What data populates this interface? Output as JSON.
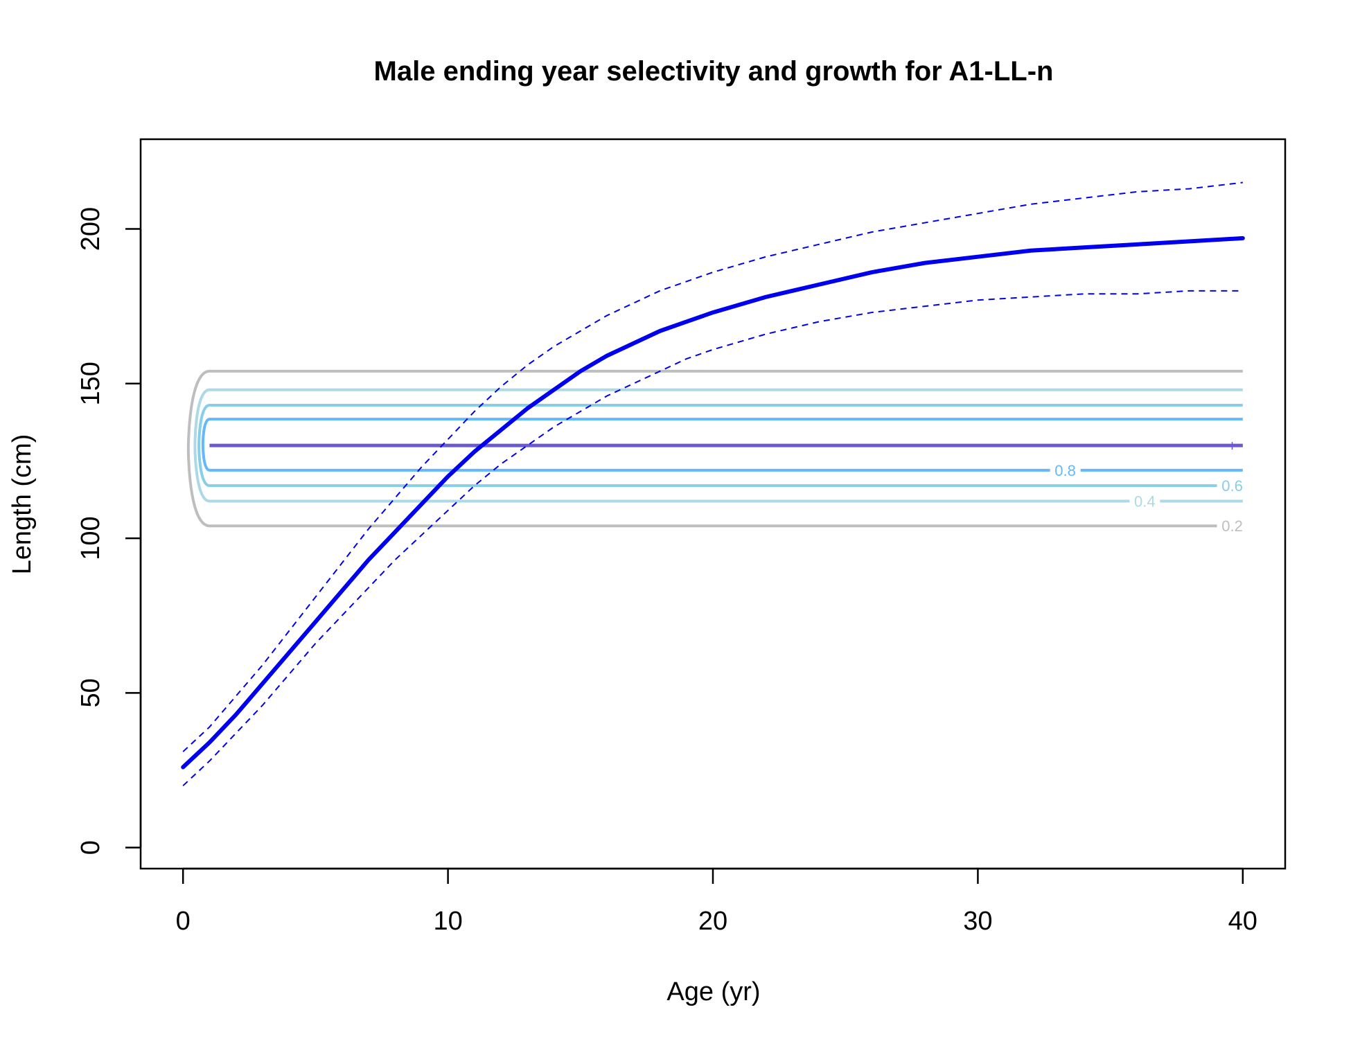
{
  "chart_data": {
    "type": "line",
    "title": "Male ending year selectivity and growth for A1-LL-n",
    "xlabel": "Age (yr)",
    "ylabel": "Length (cm)",
    "xlim": [
      -1.6,
      41.6
    ],
    "ylim": [
      -6.8,
      229
    ],
    "xticks": [
      0,
      10,
      20,
      30,
      40
    ],
    "yticks": [
      0,
      50,
      100,
      150,
      200
    ],
    "grid": false,
    "colors": {
      "growth": "#0000ee",
      "c02": "#bebebe",
      "c04": "#add8e6",
      "c06": "#87ceeb",
      "c08": "#63b8ff",
      "c10": "#6a5acd"
    },
    "series": [
      {
        "role": "growth-mean",
        "style": "solid",
        "x": [
          0,
          1,
          2,
          3,
          4,
          5,
          6,
          7,
          8,
          9,
          10,
          11,
          12,
          13,
          14,
          15,
          16,
          17,
          18,
          19,
          20,
          22,
          24,
          26,
          28,
          30,
          32,
          34,
          36,
          38,
          40
        ],
        "y": [
          26,
          34,
          43,
          53,
          63,
          73,
          83,
          93,
          102,
          111,
          120,
          128,
          135,
          142,
          148,
          154,
          159,
          163,
          167,
          170,
          173,
          178,
          182,
          186,
          189,
          191,
          193,
          194,
          195,
          196,
          197
        ]
      },
      {
        "role": "growth-upper",
        "style": "dashed",
        "x": [
          0,
          1,
          2,
          3,
          4,
          5,
          6,
          7,
          8,
          9,
          10,
          11,
          12,
          13,
          14,
          15,
          16,
          17,
          18,
          19,
          20,
          22,
          24,
          26,
          28,
          30,
          32,
          34,
          36,
          38,
          40
        ],
        "y": [
          31,
          39,
          49,
          59,
          70,
          81,
          92,
          103,
          113,
          123,
          132,
          141,
          149,
          156,
          162,
          167,
          172,
          176,
          180,
          183,
          186,
          191,
          195,
          199,
          202,
          205,
          208,
          210,
          212,
          213,
          215
        ]
      },
      {
        "role": "growth-lower",
        "style": "dashed",
        "x": [
          0,
          1,
          2,
          3,
          4,
          5,
          6,
          7,
          8,
          9,
          10,
          11,
          12,
          13,
          14,
          15,
          16,
          17,
          18,
          19,
          20,
          22,
          24,
          26,
          28,
          30,
          32,
          34,
          36,
          38,
          40
        ],
        "y": [
          20,
          28,
          37,
          46,
          56,
          66,
          75,
          84,
          93,
          101,
          109,
          117,
          124,
          130,
          136,
          141,
          146,
          150,
          154,
          158,
          161,
          166,
          170,
          173,
          175,
          177,
          178,
          179,
          179,
          180,
          180
        ]
      }
    ],
    "contours": [
      {
        "level": "0.2",
        "color": "#bebebe",
        "ylow": 104,
        "yhigh": 154,
        "xedge": 0.2,
        "label": "0.2",
        "label_x": 39.6,
        "label_y": 104
      },
      {
        "level": "0.4",
        "color": "#add8e6",
        "ylow": 112,
        "yhigh": 148,
        "xedge": 0.45,
        "label": "0.4",
        "label_x": 36.3,
        "label_y": 112
      },
      {
        "level": "0.6",
        "color": "#87ceeb",
        "ylow": 117,
        "yhigh": 143,
        "xedge": 0.6,
        "label": "0.6",
        "label_x": 39.6,
        "label_y": 117
      },
      {
        "level": "0.8",
        "color": "#63b8ff",
        "ylow": 122,
        "yhigh": 138.5,
        "xedge": 0.75,
        "label": "0.8",
        "label_x": 33.3,
        "label_y": 122
      },
      {
        "level": "1",
        "color": "#6a5acd",
        "ylow": 130,
        "yhigh": 130,
        "xedge": 1,
        "label": "1",
        "label_x": 39.6,
        "label_y": 130
      }
    ]
  }
}
